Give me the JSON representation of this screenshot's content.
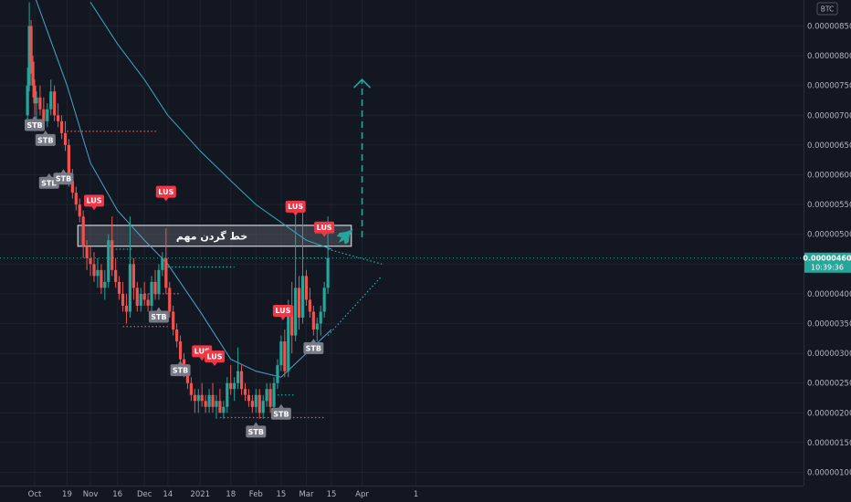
{
  "chart_data": {
    "type": "candlestick",
    "currency_badge": "BTC",
    "y_axis": {
      "min": 1e-06,
      "max": 8.9e-06,
      "ticks": [
        "0.00000850",
        "0.00000800",
        "0.00000750",
        "0.00000700",
        "0.00000650",
        "0.00000600",
        "0.00000550",
        "0.00000500",
        "0.00000450",
        "0.00000400",
        "0.00000350",
        "0.00000300",
        "0.00000250",
        "0.00000200",
        "0.00000150",
        "0.00000100"
      ]
    },
    "x_axis": {
      "ticks": [
        {
          "label": "Oct",
          "date": "2020-10-01"
        },
        {
          "label": "19",
          "date": "2020-10-19"
        },
        {
          "label": "Nov",
          "date": "2020-11-01"
        },
        {
          "label": "16",
          "date": "2020-11-16"
        },
        {
          "label": "Dec",
          "date": "2020-12-01"
        },
        {
          "label": "14",
          "date": "2020-12-14"
        },
        {
          "label": "2021",
          "date": "2021-01-01"
        },
        {
          "label": "18",
          "date": "2021-01-18"
        },
        {
          "label": "Feb",
          "date": "2021-02-01"
        },
        {
          "label": "15",
          "date": "2021-02-15"
        },
        {
          "label": "Mar",
          "date": "2021-03-01"
        },
        {
          "label": "15",
          "date": "2021-03-15"
        },
        {
          "label": "Apr",
          "date": "2021-04-01"
        },
        {
          "label": "1",
          "date": "2021-05-01"
        }
      ]
    },
    "last_price": {
      "value": "0.00000460",
      "timer": "10:39:36"
    },
    "candle_colors": {
      "up": "#26a69a",
      "down": "#ef5350"
    },
    "candles": [
      [
        "2020-09-27",
        7e-06,
        7.8e-06,
        6.9e-06,
        7.5e-06
      ],
      [
        "2020-09-28",
        7.5e-06,
        8.9e-06,
        7.4e-06,
        8.5e-06
      ],
      [
        "2020-09-29",
        8.5e-06,
        8.6e-06,
        7.7e-06,
        7.9e-06
      ],
      [
        "2020-09-30",
        7.9e-06,
        8e-06,
        7.3e-06,
        7.5e-06
      ],
      [
        "2020-10-01",
        7.5e-06,
        7.6e-06,
        7e-06,
        7.2e-06
      ],
      [
        "2020-10-02",
        7.2e-06,
        7.4e-06,
        6.9e-06,
        7.3e-06
      ],
      [
        "2020-10-04",
        7.3e-06,
        7.5e-06,
        7e-06,
        7.1e-06
      ],
      [
        "2020-10-06",
        7.1e-06,
        7.3e-06,
        6.8e-06,
        6.9e-06
      ],
      [
        "2020-10-08",
        6.9e-06,
        7.2e-06,
        6.8e-06,
        7.1e-06
      ],
      [
        "2020-10-10",
        7.1e-06,
        7.6e-06,
        7e-06,
        7.4e-06
      ],
      [
        "2020-10-12",
        7.4e-06,
        7.5e-06,
        6.9e-06,
        7e-06
      ],
      [
        "2020-10-14",
        7e-06,
        7.2e-06,
        6.8e-06,
        6.9e-06
      ],
      [
        "2020-10-16",
        6.9e-06,
        7e-06,
        6.6e-06,
        6.7e-06
      ],
      [
        "2020-10-18",
        6.7e-06,
        6.9e-06,
        6.4e-06,
        6.5e-06
      ],
      [
        "2020-10-20",
        6.5e-06,
        6.6e-06,
        5.8e-06,
        5.9e-06
      ],
      [
        "2020-10-22",
        5.9e-06,
        6.1e-06,
        5.6e-06,
        5.7e-06
      ],
      [
        "2020-10-24",
        5.7e-06,
        5.8e-06,
        5.4e-06,
        5.5e-06
      ],
      [
        "2020-10-26",
        5.5e-06,
        5.6e-06,
        5.2e-06,
        5.3e-06
      ],
      [
        "2020-10-28",
        5.3e-06,
        5.4e-06,
        4.6e-06,
        4.8e-06
      ],
      [
        "2020-10-30",
        4.8e-06,
        4.9e-06,
        4.4e-06,
        4.6e-06
      ],
      [
        "2020-11-01",
        4.6e-06,
        4.8e-06,
        4.3e-06,
        4.5e-06
      ],
      [
        "2020-11-03",
        4.5e-06,
        4.7e-06,
        4.2e-06,
        4.3e-06
      ],
      [
        "2020-11-05",
        4.3e-06,
        4.6e-06,
        4.1e-06,
        4.4e-06
      ],
      [
        "2020-11-07",
        4.4e-06,
        4.5e-06,
        4e-06,
        4.1e-06
      ],
      [
        "2020-11-09",
        4.1e-06,
        4.4e-06,
        3.9e-06,
        4.2e-06
      ],
      [
        "2020-11-11",
        4.2e-06,
        5e-06,
        4.1e-06,
        4.9e-06
      ],
      [
        "2020-11-13",
        4.9e-06,
        5.3e-06,
        4.3e-06,
        4.4e-06
      ],
      [
        "2020-11-15",
        4.4e-06,
        4.6e-06,
        4.1e-06,
        4.2e-06
      ],
      [
        "2020-11-17",
        4.2e-06,
        4.3e-06,
        3.9e-06,
        4e-06
      ],
      [
        "2020-11-19",
        4e-06,
        4.2e-06,
        3.7e-06,
        3.8e-06
      ],
      [
        "2020-11-21",
        3.8e-06,
        4e-06,
        3.5e-06,
        3.7e-06
      ],
      [
        "2020-11-23",
        3.7e-06,
        5.3e-06,
        3.6e-06,
        4.5e-06
      ],
      [
        "2020-11-25",
        4.5e-06,
        4.6e-06,
        3.9e-06,
        4.1e-06
      ],
      [
        "2020-11-27",
        4.1e-06,
        4.2e-06,
        3.7e-06,
        3.8e-06
      ],
      [
        "2020-11-29",
        3.8e-06,
        4.1e-06,
        3.7e-06,
        4e-06
      ],
      [
        "2020-12-01",
        4e-06,
        4.2e-06,
        3.8e-06,
        3.9e-06
      ],
      [
        "2020-12-03",
        3.9e-06,
        4e-06,
        3.7e-06,
        3.8e-06
      ],
      [
        "2020-12-05",
        3.8e-06,
        4.3e-06,
        3.7e-06,
        4.2e-06
      ],
      [
        "2020-12-07",
        4.2e-06,
        4.4e-06,
        3.9e-06,
        4e-06
      ],
      [
        "2020-12-09",
        4e-06,
        4.5e-06,
        3.9e-06,
        4.4e-06
      ],
      [
        "2020-12-11",
        4.4e-06,
        4.7e-06,
        4.3e-06,
        4.6e-06
      ],
      [
        "2020-12-13",
        4.6e-06,
        5.1e-06,
        4e-06,
        4.1e-06
      ],
      [
        "2020-12-15",
        4.1e-06,
        4.2e-06,
        3.6e-06,
        3.7e-06
      ],
      [
        "2020-12-17",
        3.7e-06,
        3.8e-06,
        3.3e-06,
        3.4e-06
      ],
      [
        "2020-12-19",
        3.4e-06,
        3.5e-06,
        3.1e-06,
        3.2e-06
      ],
      [
        "2020-12-21",
        3.2e-06,
        3.3e-06,
        2.8e-06,
        2.9e-06
      ],
      [
        "2020-12-23",
        2.9e-06,
        3e-06,
        2.6e-06,
        2.7e-06
      ],
      [
        "2020-12-25",
        2.7e-06,
        2.8e-06,
        2.4e-06,
        2.5e-06
      ],
      [
        "2020-12-27",
        2.5e-06,
        2.6e-06,
        2.2e-06,
        2.3e-06
      ],
      [
        "2020-12-29",
        2.3e-06,
        2.4e-06,
        2e-06,
        2.2e-06
      ],
      [
        "2020-12-31",
        2.2e-06,
        2.4e-06,
        2e-06,
        2.3e-06
      ],
      [
        "2021-01-02",
        2.3e-06,
        2.5e-06,
        2.1e-06,
        2.2e-06
      ],
      [
        "2021-01-04",
        2.2e-06,
        2.3e-06,
        2e-06,
        2.1e-06
      ],
      [
        "2021-01-06",
        2.1e-06,
        2.4e-06,
        2e-06,
        2.3e-06
      ],
      [
        "2021-01-08",
        2.3e-06,
        2.5e-06,
        2e-06,
        2.1e-06
      ],
      [
        "2021-01-10",
        2.1e-06,
        2.3e-06,
        1.9e-06,
        2.2e-06
      ],
      [
        "2021-01-12",
        2.2e-06,
        2.4e-06,
        2e-06,
        2e-06
      ],
      [
        "2021-01-14",
        2e-06,
        2.2e-06,
        1.9e-06,
        2.1e-06
      ],
      [
        "2021-01-16",
        2.1e-06,
        2.6e-06,
        2e-06,
        2.5e-06
      ],
      [
        "2021-01-18",
        2.5e-06,
        2.8e-06,
        2.3e-06,
        2.4e-06
      ],
      [
        "2021-01-20",
        2.4e-06,
        2.6e-06,
        2.2e-06,
        2.5e-06
      ],
      [
        "2021-01-22",
        2.5e-06,
        3.1e-06,
        2.4e-06,
        2.7e-06
      ],
      [
        "2021-01-24",
        2.7e-06,
        2.8e-06,
        2.3e-06,
        2.4e-06
      ],
      [
        "2021-01-26",
        2.4e-06,
        2.5e-06,
        2.2e-06,
        2.3e-06
      ],
      [
        "2021-01-28",
        2.3e-06,
        2.4e-06,
        2.1e-06,
        2.2e-06
      ],
      [
        "2021-01-30",
        2.2e-06,
        2.3e-06,
        2e-06,
        2.1e-06
      ],
      [
        "2021-02-01",
        2.1e-06,
        2.4e-06,
        2e-06,
        2.3e-06
      ],
      [
        "2021-02-03",
        2.3e-06,
        2.4e-06,
        1.9e-06,
        2e-06
      ],
      [
        "2021-02-05",
        2e-06,
        2.3e-06,
        1.9e-06,
        2.2e-06
      ],
      [
        "2021-02-07",
        2.2e-06,
        2.5e-06,
        2.1e-06,
        2.4e-06
      ],
      [
        "2021-02-09",
        2.4e-06,
        2.5e-06,
        2e-06,
        2.1e-06
      ],
      [
        "2021-02-11",
        2.1e-06,
        2.6e-06,
        1.9e-06,
        2.5e-06
      ],
      [
        "2021-02-13",
        2.5e-06,
        2.9e-06,
        2.4e-06,
        2.8e-06
      ],
      [
        "2021-02-15",
        2.8e-06,
        3.3e-06,
        2.7e-06,
        3.2e-06
      ],
      [
        "2021-02-17",
        3.2e-06,
        3.4e-06,
        2.6e-06,
        2.7e-06
      ],
      [
        "2021-02-19",
        2.7e-06,
        3.9e-06,
        2.6e-06,
        3.8e-06
      ],
      [
        "2021-02-21",
        3.8e-06,
        4.2e-06,
        3e-06,
        3.3e-06
      ],
      [
        "2021-02-23",
        3.3e-06,
        5.4e-06,
        3.2e-06,
        4.1e-06
      ],
      [
        "2021-02-25",
        4.1e-06,
        4.3e-06,
        3.4e-06,
        3.6e-06
      ],
      [
        "2021-02-27",
        3.6e-06,
        5.4e-06,
        3.5e-06,
        4.3e-06
      ],
      [
        "2021-03-01",
        4.3e-06,
        4.4e-06,
        3.8e-06,
        3.9e-06
      ],
      [
        "2021-03-03",
        3.9e-06,
        4.1e-06,
        3.6e-06,
        3.7e-06
      ],
      [
        "2021-03-05",
        3.7e-06,
        3.8e-06,
        3.3e-06,
        3.4e-06
      ],
      [
        "2021-03-07",
        3.4e-06,
        3.6e-06,
        3.2e-06,
        3.5e-06
      ],
      [
        "2021-03-09",
        3.5e-06,
        3.8e-06,
        3.3e-06,
        3.7e-06
      ],
      [
        "2021-03-11",
        3.7e-06,
        4.2e-06,
        3.6e-06,
        4.1e-06
      ],
      [
        "2021-03-13",
        4.1e-06,
        5.3e-06,
        4e-06,
        4.6e-06
      ]
    ],
    "moving_averages": [
      {
        "color": "#4fa3c7",
        "points": [
          [
            "2020-10-01",
            9e-06
          ],
          [
            "2020-10-19",
            7.5e-06
          ],
          [
            "2020-11-01",
            6.2e-06
          ],
          [
            "2020-11-16",
            5.4e-06
          ],
          [
            "2020-12-01",
            4.9e-06
          ],
          [
            "2020-12-14",
            4.5e-06
          ],
          [
            "2021-01-01",
            3.7e-06
          ],
          [
            "2021-01-18",
            2.9e-06
          ],
          [
            "2021-02-01",
            2.7e-06
          ],
          [
            "2021-02-15",
            2.6e-06
          ],
          [
            "2021-03-01",
            3e-06
          ],
          [
            "2021-03-15",
            3.4e-06
          ]
        ]
      },
      {
        "color": "#38a8bd",
        "points": [
          [
            "2020-11-01",
            8.9e-06
          ],
          [
            "2020-11-16",
            8.2e-06
          ],
          [
            "2020-12-01",
            7.6e-06
          ],
          [
            "2020-12-14",
            7e-06
          ],
          [
            "2021-01-01",
            6.4e-06
          ],
          [
            "2021-01-18",
            5.9e-06
          ],
          [
            "2021-02-01",
            5.5e-06
          ],
          [
            "2021-02-15",
            5.2e-06
          ],
          [
            "2021-03-01",
            4.9e-06
          ],
          [
            "2021-03-15",
            4.75e-06
          ]
        ]
      }
    ],
    "zone": {
      "label": "خط گردن مهم",
      "top": 5.15e-06,
      "bottom": 4.8e-06,
      "start": "2020-10-25",
      "end": "2021-03-26"
    },
    "resistance_lines": [
      {
        "y": 6.73e-06,
        "start": "2020-10-19",
        "end": "2020-12-08",
        "color": "#ef5350"
      },
      {
        "y": 4e-06,
        "start": "2020-12-01",
        "end": "2020-12-20",
        "color": "#ef5350"
      },
      {
        "y": 3.45e-06,
        "start": "2020-11-19",
        "end": "2020-12-14",
        "color": "#ef5350"
      },
      {
        "y": 1.92e-06,
        "start": "2021-01-12",
        "end": "2021-03-11",
        "color": "#ef5350"
      },
      {
        "y": 4.45e-06,
        "start": "2020-12-14",
        "end": "2021-01-20",
        "color": "#26a69a"
      },
      {
        "y": 4.75e-06,
        "start": "2020-11-11",
        "end": "2020-11-25",
        "color": "#26a69a"
      },
      {
        "y": 2.3e-06,
        "start": "2021-02-13",
        "end": "2021-02-23",
        "color": "#26a69a"
      },
      {
        "y": 4.6e-06,
        "start": "2021-02-23",
        "end": "2021-03-13",
        "color": "#26a69a"
      }
    ],
    "trend_lines": [
      {
        "from": [
          "2021-03-13",
          4.75e-06
        ],
        "to": [
          "2021-04-12",
          4.5e-06
        ]
      },
      {
        "from": [
          "2021-03-13",
          3.3e-06
        ],
        "to": [
          "2021-04-12",
          4.3e-06
        ]
      }
    ],
    "target_arrow": {
      "date": "2021-04-01",
      "from": 4.95e-06,
      "to": 7.6e-06
    },
    "labels": [
      {
        "text": "STB",
        "kind": "STB",
        "date": "2020-10-01",
        "price": 6.95e-06
      },
      {
        "text": "STB",
        "kind": "STB",
        "date": "2020-10-07",
        "price": 6.7e-06
      },
      {
        "text": "STB",
        "kind": "STB",
        "date": "2020-10-09",
        "price": 5.98e-06
      },
      {
        "text": "STB",
        "kind": "STB",
        "date": "2020-10-17",
        "price": 6.05e-06
      },
      {
        "text": "LUS",
        "kind": "LUS",
        "date": "2020-11-03",
        "price": 5.45e-06
      },
      {
        "text": "LUS",
        "kind": "LUS",
        "date": "2020-12-13",
        "price": 5.6e-06
      },
      {
        "text": "STB",
        "kind": "STB",
        "date": "2020-12-09",
        "price": 3.73e-06
      },
      {
        "text": "STB",
        "kind": "STB",
        "date": "2020-12-21",
        "price": 2.83e-06
      },
      {
        "text": "LUS",
        "kind": "LUS",
        "date": "2021-01-02",
        "price": 2.92e-06
      },
      {
        "text": "LUS",
        "kind": "LUS",
        "date": "2021-01-09",
        "price": 2.83e-06
      },
      {
        "text": "STB",
        "kind": "STB",
        "date": "2021-02-01",
        "price": 1.8e-06
      },
      {
        "text": "STB",
        "kind": "STB",
        "date": "2021-02-15",
        "price": 2.1e-06
      },
      {
        "text": "LUS",
        "kind": "LUS",
        "date": "2021-02-16",
        "price": 3.6e-06
      },
      {
        "text": "LUS",
        "kind": "LUS",
        "date": "2021-02-23",
        "price": 5.35e-06
      },
      {
        "text": "STB",
        "kind": "STB",
        "date": "2021-03-05",
        "price": 3.2e-06
      },
      {
        "text": "LUS",
        "kind": "LUS",
        "date": "2021-03-11",
        "price": 5e-06
      }
    ]
  }
}
